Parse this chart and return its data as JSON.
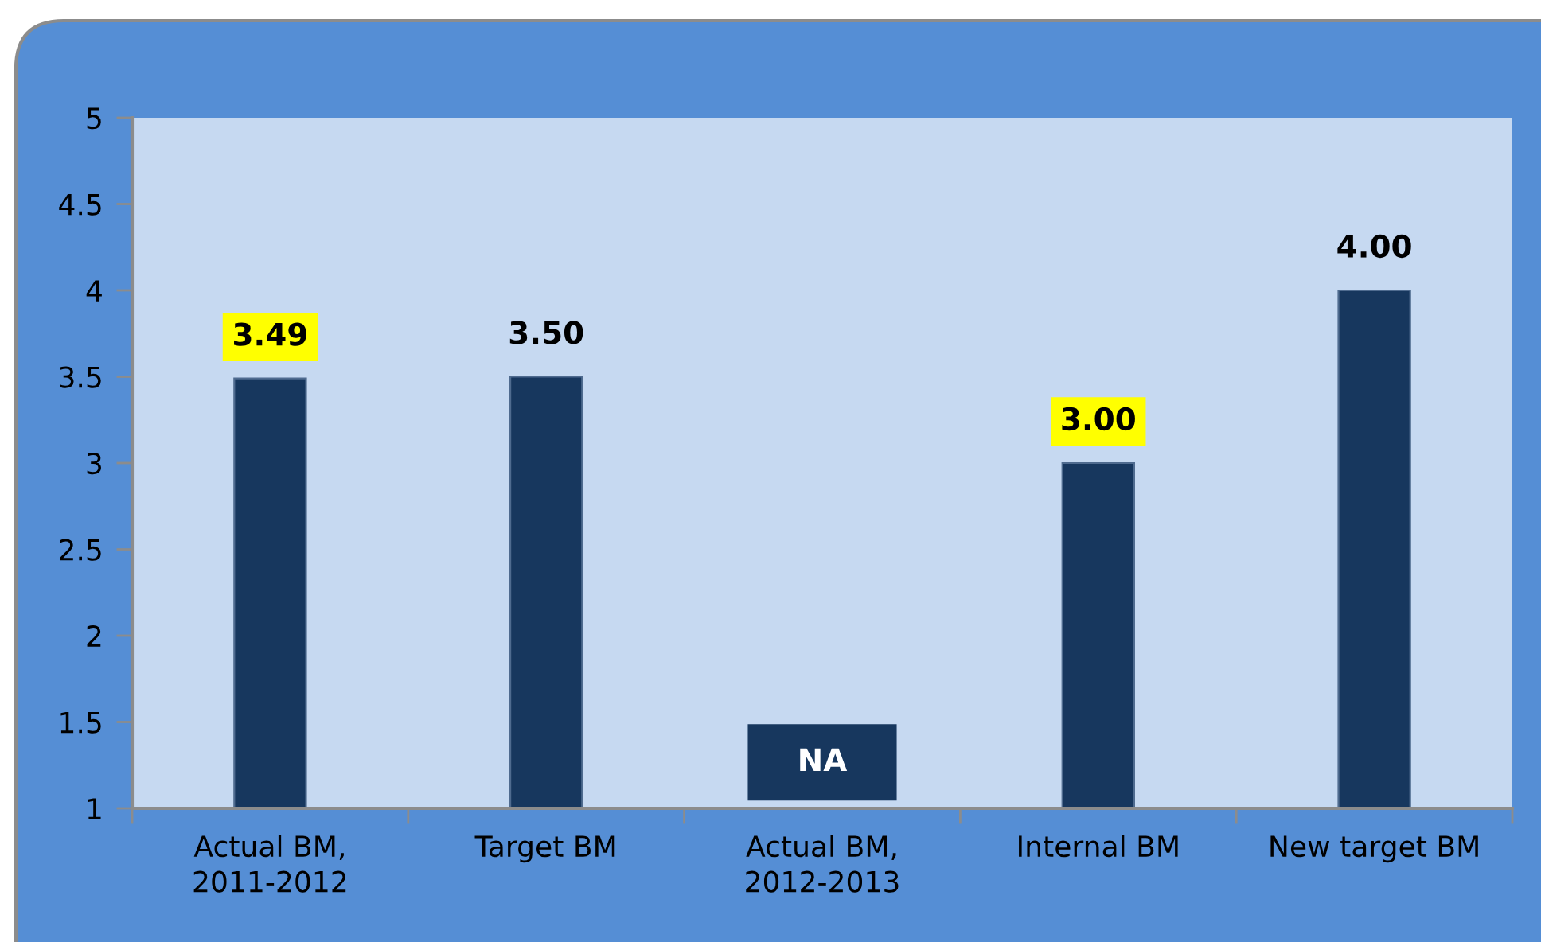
{
  "chart_data": {
    "type": "bar",
    "categories": [
      "Actual BM,\n2011-2012",
      "Target BM",
      "Actual BM,\n2012-2013",
      "Internal BM",
      "New target BM"
    ],
    "values": [
      3.49,
      3.5,
      null,
      3.0,
      4.0
    ],
    "value_labels": [
      "3.49",
      "3.50",
      "NA",
      "3.00",
      "4.00"
    ],
    "color": "#17375e",
    "ylim": [
      1,
      5
    ],
    "yticks": [
      1,
      1.5,
      2,
      2.5,
      3,
      3.5,
      4,
      4.5,
      5
    ]
  }
}
